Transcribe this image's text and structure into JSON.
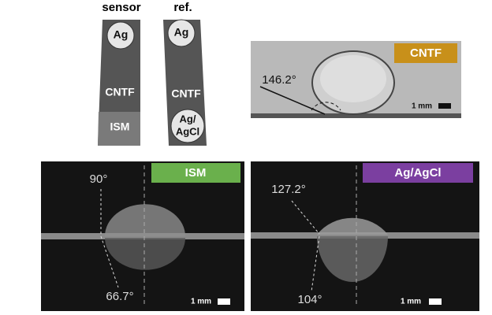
{
  "strips": {
    "sensor": {
      "title": "sensor",
      "top": "Ag",
      "middle": "CNTF",
      "bottom": "ISM"
    },
    "reference": {
      "title": "ref.",
      "top": "Ag",
      "middle": "CNTF",
      "bottom_line1": "Ag/",
      "bottom_line2": "AgCl"
    }
  },
  "panels": [
    {
      "label": "CNTF",
      "angles": [
        "146.2°"
      ],
      "scale": "1 mm"
    },
    {
      "label": "ISM",
      "angles": [
        "90°",
        "66.7°"
      ],
      "scale": "1 mm"
    },
    {
      "label": "Ag/AgCl",
      "angles": [
        "127.2°",
        "104°"
      ],
      "scale": "1 mm"
    }
  ]
}
